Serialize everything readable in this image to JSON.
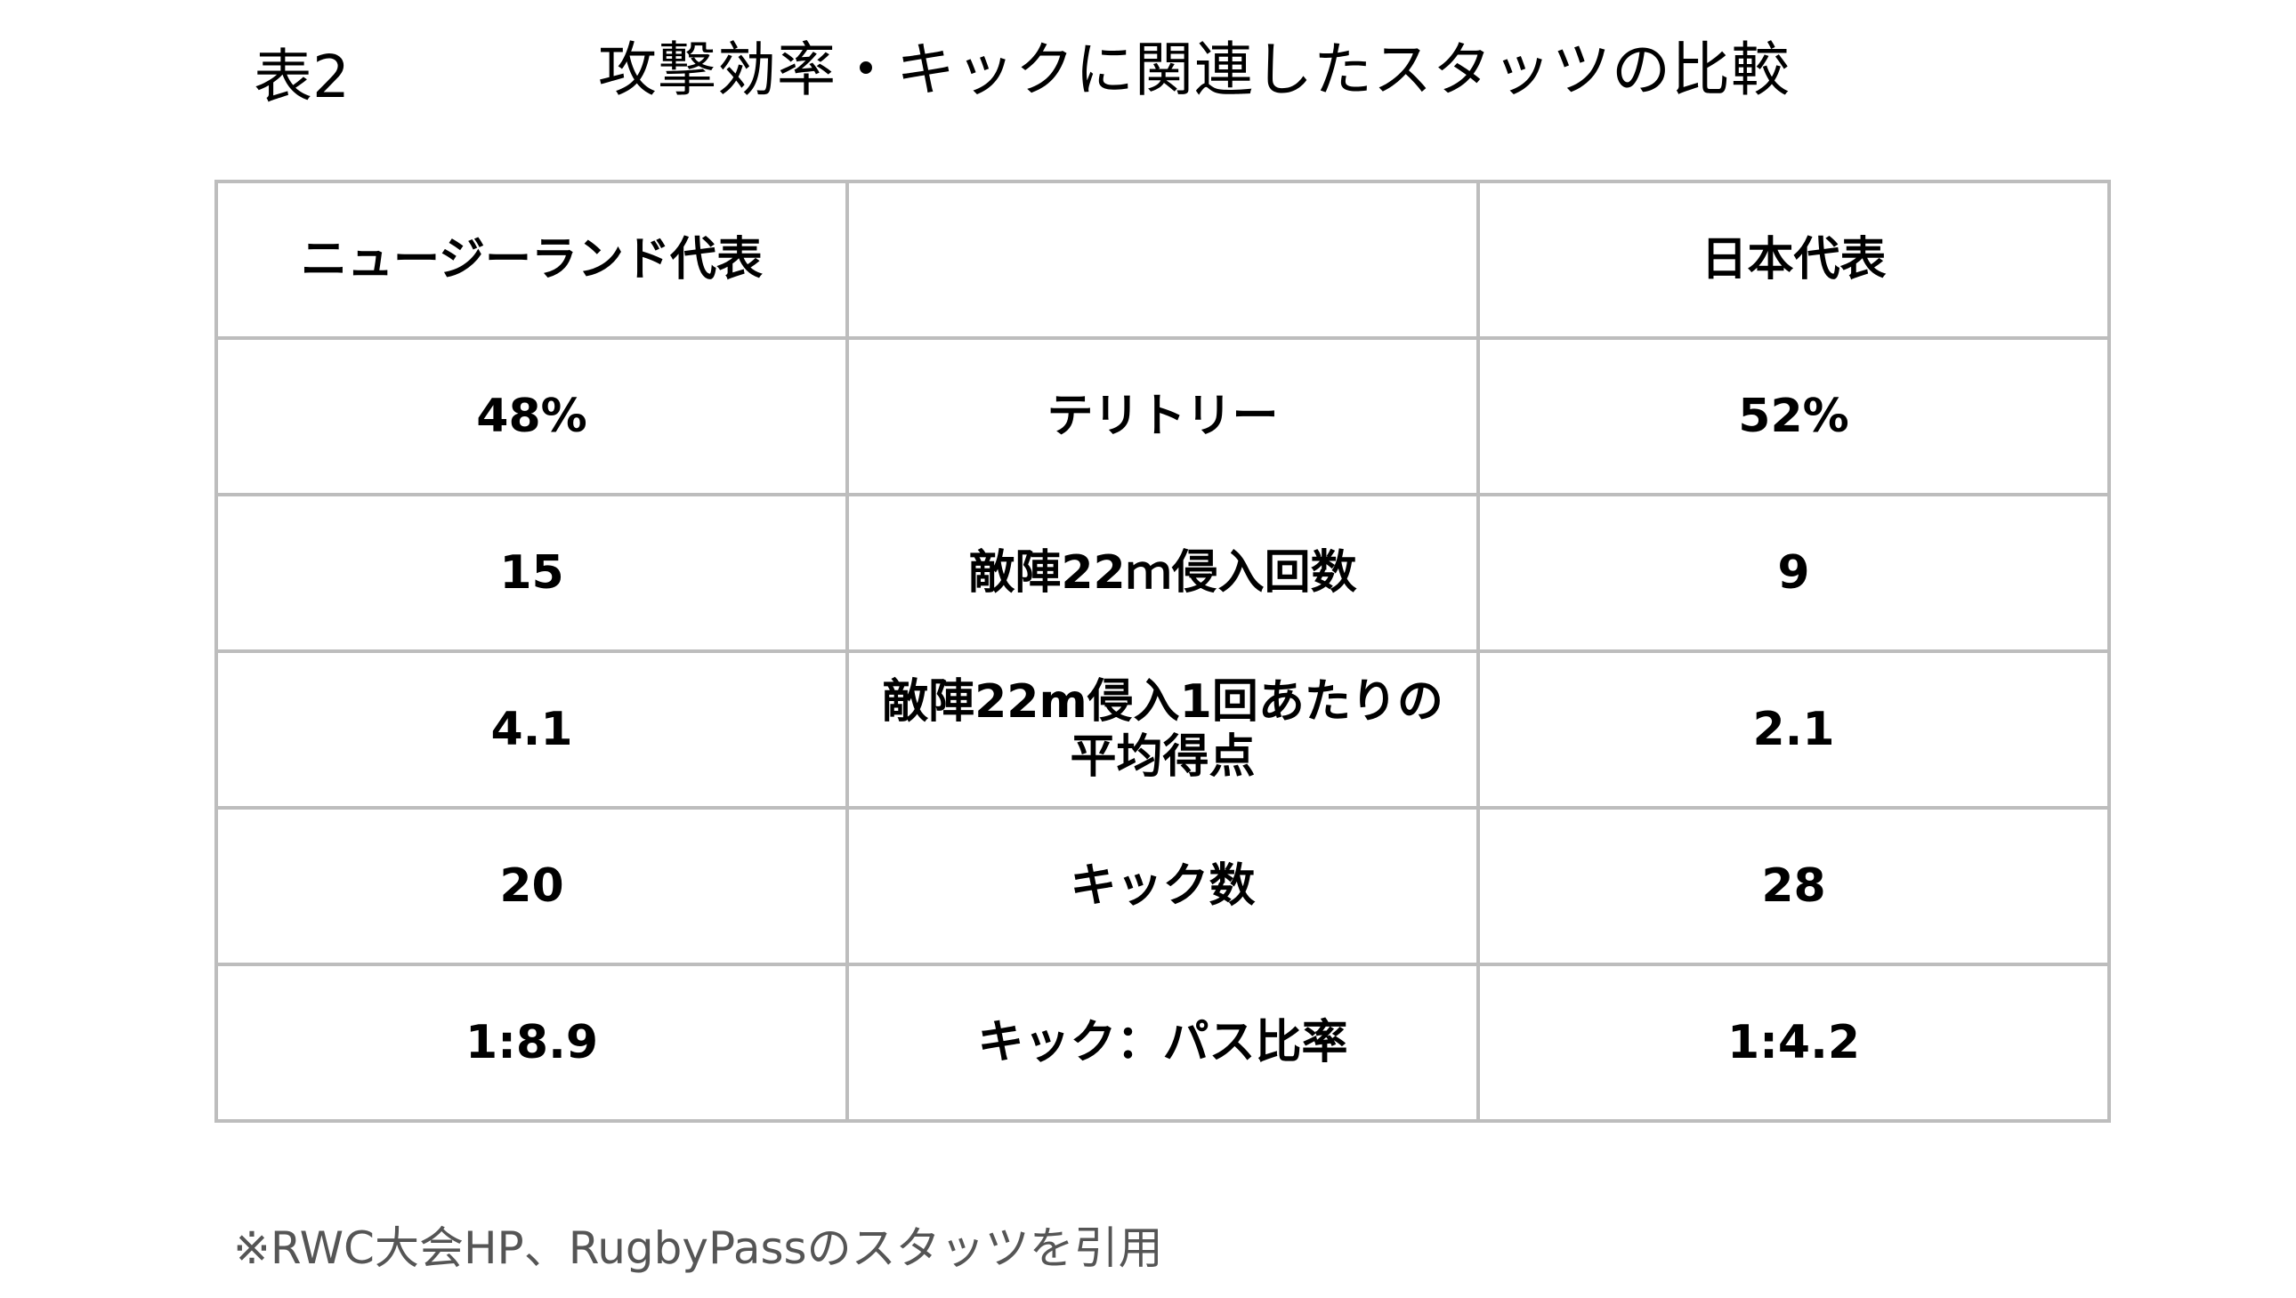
{
  "header": {
    "table_label": "表2",
    "title": "攻撃効率・キックに関連したスタッツの比較"
  },
  "table": {
    "header_row": {
      "left": "ニュージーランド代表",
      "middle": "",
      "right": "日本代表"
    },
    "rows": [
      {
        "nz": "48%",
        "stat": "テリトリー",
        "jp": "52%"
      },
      {
        "nz": "15",
        "stat": "敵陣22ｍ侵入回数",
        "jp": "9"
      },
      {
        "nz": "4.1",
        "stat": "敵陣22m侵入1回あたりの平均得点",
        "jp": "2.1"
      },
      {
        "nz": "20",
        "stat": "キック数",
        "jp": "28"
      },
      {
        "nz": "1:8.9",
        "stat": "キック：パス比率",
        "jp": "1:4.2"
      }
    ]
  },
  "footnote": "※RWC大会HP、RugbyPassのスタッツを引用"
}
